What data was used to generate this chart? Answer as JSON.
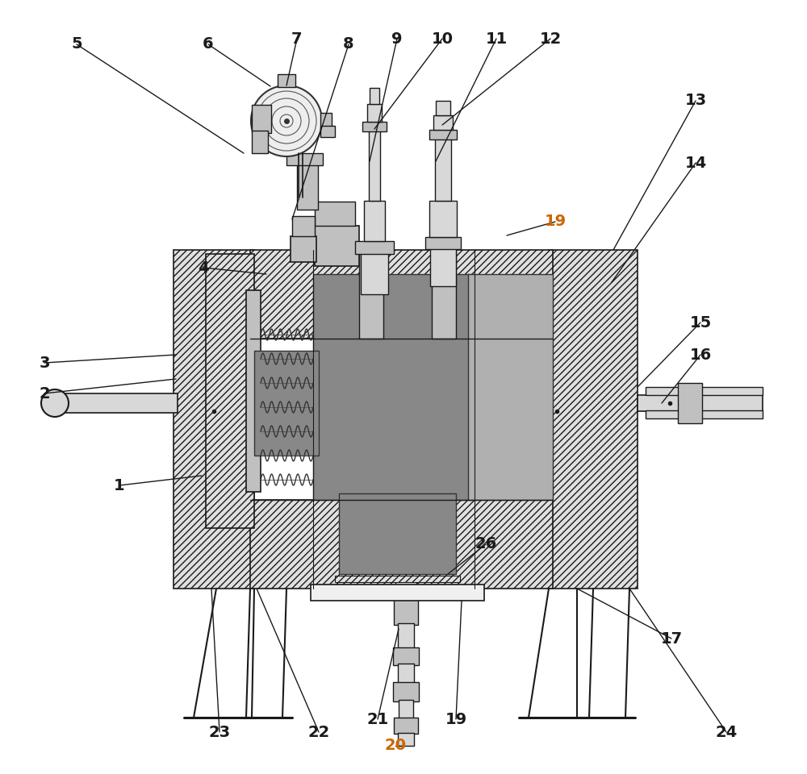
{
  "bg_color": "#ffffff",
  "lc": "#1a1a1a",
  "figsize": [
    10.0,
    9.6
  ],
  "dpi": 100,
  "hatch_fc": "#e0e0e0",
  "dark_fc": "#888888",
  "mid_fc": "#c0c0c0",
  "light_fc": "#d8d8d8"
}
